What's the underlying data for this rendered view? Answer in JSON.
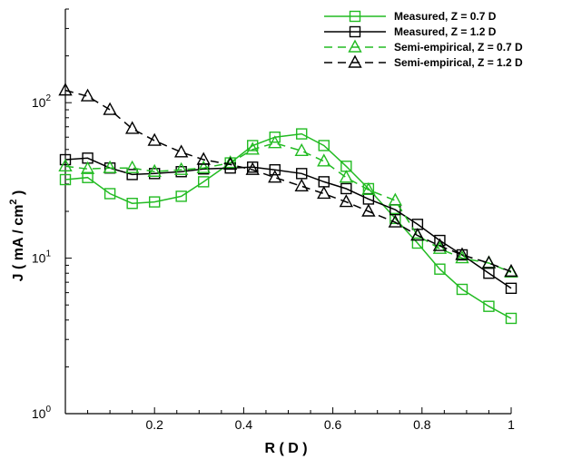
{
  "chart_data": {
    "type": "line",
    "title": "",
    "xlabel": "R ( D )",
    "ylabel": "J ( mA / cm² )",
    "ylabel_parts": [
      "J ( mA / cm",
      "2",
      " )"
    ],
    "xlim": [
      0,
      1
    ],
    "ylim": [
      1,
      400
    ],
    "yscale": "log",
    "x_ticks": [
      0.2,
      0.4,
      0.6,
      0.8,
      1
    ],
    "x_tick_labels": [
      "0.2",
      "0.4",
      "0.6",
      "0.8",
      "1"
    ],
    "y_ticks": [
      1,
      10,
      100
    ],
    "y_tick_labels": [
      {
        "base": "10",
        "exp": "0"
      },
      {
        "base": "10",
        "exp": "1"
      },
      {
        "base": "10",
        "exp": "2"
      }
    ],
    "grid": false,
    "legend_position": "top-right",
    "series": [
      {
        "name": "Measured, Z = 0.7 D",
        "color": "#22bb22",
        "dash": "solid",
        "marker": "square",
        "x": [
          0.0,
          0.05,
          0.1,
          0.15,
          0.2,
          0.26,
          0.31,
          0.37,
          0.42,
          0.47,
          0.53,
          0.58,
          0.63,
          0.68,
          0.74,
          0.79,
          0.84,
          0.89,
          0.95,
          1.0
        ],
        "y": [
          32,
          33,
          26,
          22.5,
          23,
          25,
          31,
          41,
          53,
          60,
          63,
          53,
          39,
          28,
          18,
          12.5,
          8.5,
          6.3,
          4.9,
          4.1
        ]
      },
      {
        "name": "Measured, Z = 1.2 D",
        "color": "#000000",
        "dash": "solid",
        "marker": "square",
        "x": [
          0.0,
          0.05,
          0.1,
          0.15,
          0.2,
          0.26,
          0.31,
          0.37,
          0.42,
          0.47,
          0.53,
          0.58,
          0.63,
          0.68,
          0.74,
          0.79,
          0.84,
          0.89,
          0.95,
          1.0
        ],
        "y": [
          43,
          44,
          38,
          34.5,
          35,
          36,
          37.5,
          38,
          38.5,
          37,
          35,
          31,
          28,
          24,
          20.5,
          16.5,
          13,
          10.5,
          8,
          6.4
        ]
      },
      {
        "name": "Semi-empirical, Z = 0.7 D",
        "color": "#22bb22",
        "dash": "dashed",
        "marker": "triangle",
        "x": [
          0.0,
          0.05,
          0.1,
          0.15,
          0.2,
          0.26,
          0.31,
          0.37,
          0.42,
          0.47,
          0.53,
          0.58,
          0.63,
          0.68,
          0.74,
          0.79,
          0.84,
          0.89,
          0.95,
          1.0
        ],
        "y": [
          39,
          37.5,
          38,
          38,
          36,
          37,
          38,
          41,
          50,
          55,
          49,
          42,
          33,
          27.5,
          23.5,
          14,
          11.5,
          10,
          9.3,
          8.1
        ]
      },
      {
        "name": "Semi-empirical, Z = 1.2 D",
        "color": "#000000",
        "dash": "dashed",
        "marker": "triangle",
        "x": [
          0.0,
          0.05,
          0.1,
          0.15,
          0.2,
          0.26,
          0.31,
          0.37,
          0.42,
          0.47,
          0.53,
          0.58,
          0.63,
          0.68,
          0.74,
          0.79,
          0.84,
          0.89,
          0.95,
          1.0
        ],
        "y": [
          120,
          110,
          90,
          68,
          57,
          48,
          43,
          40,
          37,
          33,
          29,
          26,
          23,
          20,
          17,
          14,
          12,
          10.5,
          9.3,
          8.2
        ]
      }
    ]
  }
}
